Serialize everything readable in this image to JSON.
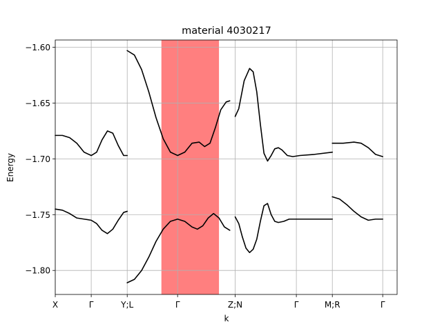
{
  "chart_data": {
    "type": "line",
    "title": "material 4030217",
    "xlabel": "k",
    "ylabel": "Energy",
    "xlim": [
      0,
      9.5
    ],
    "ylim": [
      -1.8215,
      -1.5935
    ],
    "grid": true,
    "legend": "none",
    "x_ticks": [
      {
        "x": 0.0,
        "label": "X"
      },
      {
        "x": 1.0,
        "label": "Γ"
      },
      {
        "x": 2.0,
        "label": "Y;L"
      },
      {
        "x": 3.4,
        "label": "Γ"
      },
      {
        "x": 5.0,
        "label": "Z;N"
      },
      {
        "x": 6.7,
        "label": "Γ"
      },
      {
        "x": 7.7,
        "label": "M;R"
      },
      {
        "x": 9.1,
        "label": "Γ"
      }
    ],
    "y_ticks": [
      -1.8,
      -1.75,
      -1.7,
      -1.65,
      -1.6
    ],
    "y_tick_labels": [
      "−1.80",
      "−1.75",
      "−1.70",
      "−1.65",
      "−1.60"
    ],
    "highlight_band": {
      "x_start": 2.95,
      "x_end": 4.55,
      "color": "#ff0000",
      "opacity": 0.5
    },
    "line_color": "#000000",
    "series": [
      {
        "segment": "X-Γ-Y",
        "points": [
          [
            0.0,
            -1.679
          ],
          [
            0.2,
            -1.679
          ],
          [
            0.4,
            -1.681
          ],
          [
            0.6,
            -1.686
          ],
          [
            0.8,
            -1.694
          ],
          [
            1.0,
            -1.697
          ],
          [
            1.15,
            -1.694
          ],
          [
            1.3,
            -1.683
          ],
          [
            1.45,
            -1.675
          ],
          [
            1.6,
            -1.677
          ],
          [
            1.75,
            -1.688
          ],
          [
            1.9,
            -1.697
          ],
          [
            2.0,
            -1.697
          ]
        ]
      },
      {
        "segment": "X-Γ-Y",
        "points": [
          [
            0.0,
            -1.745
          ],
          [
            0.2,
            -1.746
          ],
          [
            0.4,
            -1.749
          ],
          [
            0.6,
            -1.753
          ],
          [
            0.8,
            -1.754
          ],
          [
            1.0,
            -1.755
          ],
          [
            1.15,
            -1.758
          ],
          [
            1.3,
            -1.764
          ],
          [
            1.45,
            -1.767
          ],
          [
            1.6,
            -1.763
          ],
          [
            1.75,
            -1.755
          ],
          [
            1.9,
            -1.748
          ],
          [
            2.0,
            -1.747
          ]
        ]
      },
      {
        "segment": "L-Γ-Z",
        "points": [
          [
            2.0,
            -1.603
          ],
          [
            2.2,
            -1.607
          ],
          [
            2.4,
            -1.62
          ],
          [
            2.6,
            -1.64
          ],
          [
            2.8,
            -1.663
          ],
          [
            3.0,
            -1.682
          ],
          [
            3.2,
            -1.694
          ],
          [
            3.4,
            -1.697
          ],
          [
            3.6,
            -1.694
          ],
          [
            3.8,
            -1.686
          ],
          [
            4.0,
            -1.685
          ],
          [
            4.15,
            -1.689
          ],
          [
            4.3,
            -1.686
          ],
          [
            4.45,
            -1.672
          ],
          [
            4.6,
            -1.656
          ],
          [
            4.75,
            -1.649
          ],
          [
            4.85,
            -1.648
          ]
        ]
      },
      {
        "segment": "L-Γ-Z",
        "points": [
          [
            2.0,
            -1.811
          ],
          [
            2.2,
            -1.808
          ],
          [
            2.4,
            -1.8
          ],
          [
            2.6,
            -1.788
          ],
          [
            2.8,
            -1.774
          ],
          [
            3.0,
            -1.763
          ],
          [
            3.2,
            -1.756
          ],
          [
            3.4,
            -1.754
          ],
          [
            3.6,
            -1.756
          ],
          [
            3.8,
            -1.761
          ],
          [
            3.95,
            -1.763
          ],
          [
            4.1,
            -1.76
          ],
          [
            4.25,
            -1.753
          ],
          [
            4.4,
            -1.749
          ],
          [
            4.55,
            -1.753
          ],
          [
            4.7,
            -1.761
          ],
          [
            4.85,
            -1.764
          ]
        ]
      },
      {
        "segment": "N-Γ-M",
        "points": [
          [
            5.0,
            -1.662
          ],
          [
            5.1,
            -1.655
          ],
          [
            5.25,
            -1.63
          ],
          [
            5.4,
            -1.619
          ],
          [
            5.5,
            -1.622
          ],
          [
            5.6,
            -1.64
          ],
          [
            5.7,
            -1.669
          ],
          [
            5.8,
            -1.695
          ],
          [
            5.9,
            -1.702
          ],
          [
            6.0,
            -1.697
          ],
          [
            6.1,
            -1.691
          ],
          [
            6.2,
            -1.69
          ],
          [
            6.3,
            -1.692
          ],
          [
            6.45,
            -1.697
          ],
          [
            6.6,
            -1.698
          ],
          [
            6.8,
            -1.697
          ],
          [
            7.2,
            -1.696
          ],
          [
            7.7,
            -1.694
          ]
        ]
      },
      {
        "segment": "N-Γ-M",
        "points": [
          [
            5.0,
            -1.752
          ],
          [
            5.1,
            -1.758
          ],
          [
            5.2,
            -1.77
          ],
          [
            5.3,
            -1.78
          ],
          [
            5.4,
            -1.784
          ],
          [
            5.5,
            -1.781
          ],
          [
            5.6,
            -1.772
          ],
          [
            5.7,
            -1.756
          ],
          [
            5.8,
            -1.742
          ],
          [
            5.9,
            -1.74
          ],
          [
            6.0,
            -1.75
          ],
          [
            6.1,
            -1.756
          ],
          [
            6.2,
            -1.757
          ],
          [
            6.35,
            -1.756
          ],
          [
            6.5,
            -1.754
          ],
          [
            6.7,
            -1.754
          ],
          [
            7.2,
            -1.754
          ],
          [
            7.7,
            -1.754
          ]
        ]
      },
      {
        "segment": "R-Γ",
        "points": [
          [
            7.7,
            -1.686
          ],
          [
            8.0,
            -1.686
          ],
          [
            8.3,
            -1.685
          ],
          [
            8.5,
            -1.686
          ],
          [
            8.7,
            -1.69
          ],
          [
            8.9,
            -1.696
          ],
          [
            9.1,
            -1.698
          ]
        ]
      },
      {
        "segment": "R-Γ",
        "points": [
          [
            7.7,
            -1.734
          ],
          [
            7.9,
            -1.736
          ],
          [
            8.1,
            -1.741
          ],
          [
            8.3,
            -1.747
          ],
          [
            8.5,
            -1.752
          ],
          [
            8.7,
            -1.755
          ],
          [
            8.9,
            -1.754
          ],
          [
            9.1,
            -1.754
          ]
        ]
      }
    ]
  }
}
